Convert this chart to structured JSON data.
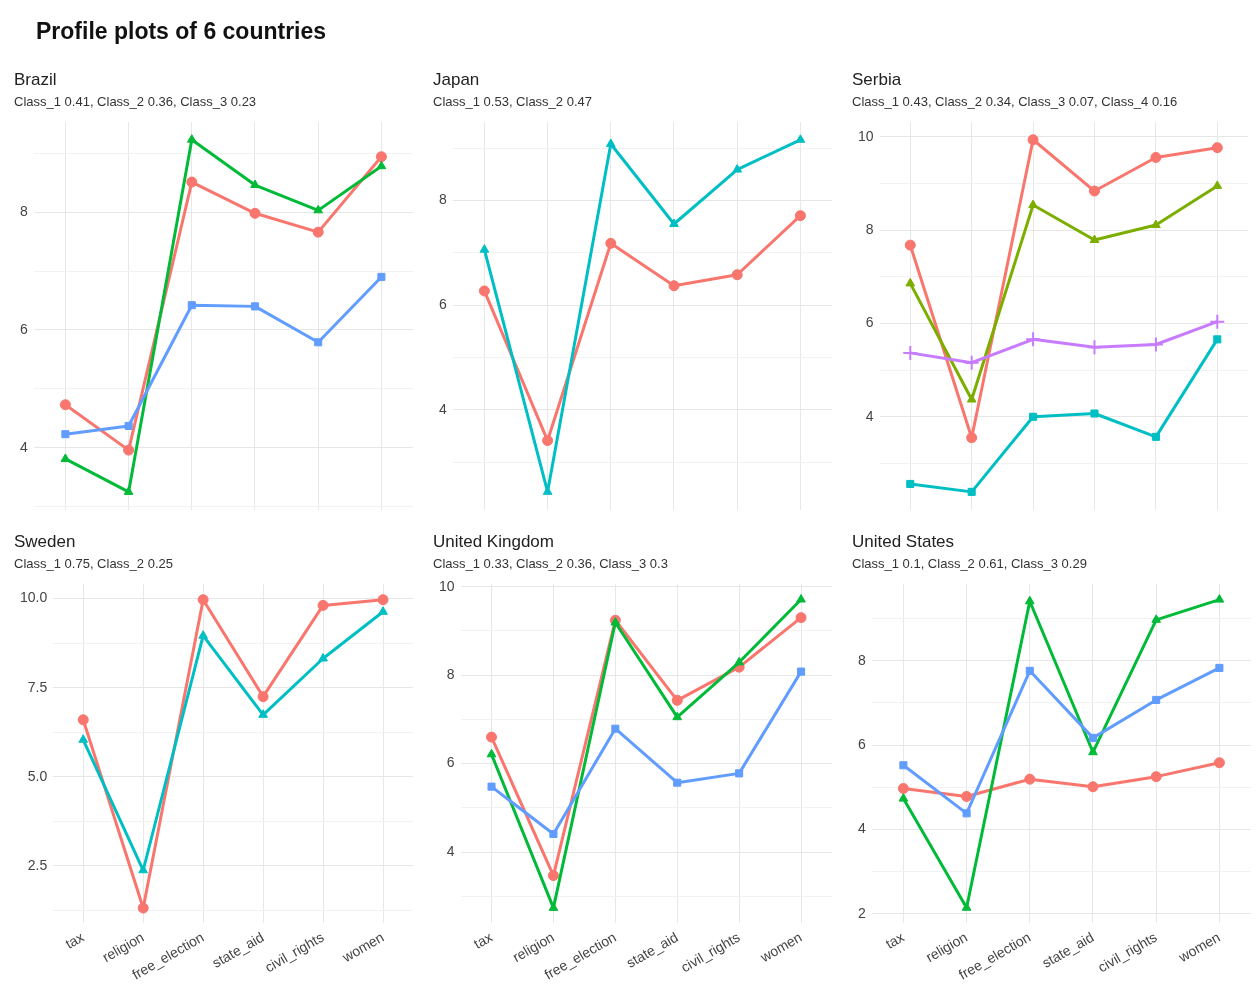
{
  "chart_data": [
    {
      "type": "line",
      "title": "Brazil",
      "subtitle": "Class_1 0.41, Class_2 0.36, Class_3 0.23",
      "annotations": [
        "Profile plots of 6 countries"
      ],
      "categories": [
        null,
        null,
        null,
        null,
        null,
        null
      ],
      "grid": true,
      "tick_labels": "y",
      "ylim": [
        2.95,
        9.53
      ],
      "yticks": [
        {
          "value": 3,
          "label": null
        },
        4,
        {
          "value": 5,
          "label": null
        },
        6,
        {
          "value": 7,
          "label": null
        },
        8,
        {
          "value": 9,
          "label": null
        }
      ],
      "series": [
        {
          "color": "#f8766d",
          "marker": "circle",
          "values": [
            4.73,
            3.96,
            8.51,
            7.98,
            7.66,
            8.94
          ]
        },
        {
          "color": "#00ba38",
          "marker": "triangle",
          "values": [
            3.81,
            3.25,
            9.23,
            8.46,
            8.03,
            8.78
          ]
        },
        {
          "color": "#619cff",
          "marker": "square",
          "values": [
            4.23,
            4.37,
            6.42,
            6.4,
            5.79,
            6.9
          ]
        }
      ]
    },
    {
      "type": "line",
      "title": "Japan",
      "subtitle": "Class_1 0.53, Class_2 0.47",
      "categories": [
        null,
        null,
        null,
        null,
        null,
        null
      ],
      "grid": true,
      "tick_labels": "y",
      "ylim": [
        2.09,
        9.5
      ],
      "yticks": [
        {
          "value": 3,
          "label": null
        },
        4,
        {
          "value": 5,
          "label": null
        },
        6,
        {
          "value": 7,
          "label": null
        },
        8,
        {
          "value": 9,
          "label": null
        }
      ],
      "series": [
        {
          "color": "#f8766d",
          "marker": "circle",
          "values": [
            6.27,
            3.41,
            7.18,
            6.37,
            6.58,
            7.71
          ]
        },
        {
          "color": "#00bfc4",
          "marker": "triangle",
          "values": [
            7.06,
            2.43,
            9.08,
            7.55,
            8.59,
            9.16
          ]
        }
      ]
    },
    {
      "type": "line",
      "title": "Serbia",
      "subtitle": "Class_1 0.43, Class_2 0.34, Class_3 0.07, Class_4 0.16",
      "categories": [
        null,
        null,
        null,
        null,
        null,
        null
      ],
      "grid": true,
      "tick_labels": "y",
      "ylim": [
        2.01,
        10.32
      ],
      "yticks": [
        {
          "value": 3,
          "label": null
        },
        4,
        {
          "value": 5,
          "label": null
        },
        6,
        {
          "value": 7,
          "label": null
        },
        8,
        {
          "value": 9,
          "label": null
        },
        10
      ],
      "series": [
        {
          "color": "#f8766d",
          "marker": "circle",
          "values": [
            7.68,
            3.55,
            9.94,
            8.84,
            9.56,
            9.77
          ]
        },
        {
          "color": "#7cae00",
          "marker": "triangle",
          "values": [
            6.86,
            4.37,
            8.54,
            7.79,
            8.11,
            8.95
          ]
        },
        {
          "color": "#00bfc4",
          "marker": "square",
          "values": [
            2.56,
            2.39,
            4.0,
            4.07,
            3.57,
            5.66
          ]
        },
        {
          "color": "#c77cff",
          "marker": "cross",
          "values": [
            5.37,
            5.16,
            5.66,
            5.49,
            5.55,
            6.04
          ]
        }
      ]
    },
    {
      "type": "line",
      "title": "Sweden",
      "subtitle": "Class_1 0.75, Class_2 0.25",
      "categories": [
        "tax",
        "religion",
        "free_election",
        "state_aid",
        "civil_rights",
        "women"
      ],
      "grid": true,
      "ylim": [
        0.89,
        10.41
      ],
      "yticks": [
        {
          "value": 1.25,
          "label": null
        },
        {
          "value": 2.5,
          "label": "2.5"
        },
        {
          "value": 3.75,
          "label": null
        },
        {
          "value": 5,
          "label": "5.0"
        },
        {
          "value": 6.25,
          "label": null
        },
        {
          "value": 7.5,
          "label": "7.5"
        },
        {
          "value": 8.75,
          "label": null
        },
        {
          "value": 10,
          "label": "10.0"
        }
      ],
      "series": [
        {
          "color": "#f8766d",
          "marker": "circle",
          "values": [
            6.6,
            1.32,
            9.97,
            7.25,
            9.81,
            9.97
          ]
        },
        {
          "color": "#00bfc4",
          "marker": "triangle",
          "values": [
            6.04,
            2.38,
            8.96,
            6.74,
            8.32,
            9.63
          ]
        }
      ]
    },
    {
      "type": "line",
      "title": "United Kingdom",
      "subtitle": "Class_1 0.33, Class_2 0.36, Class_3 0.3",
      "categories": [
        "tax",
        "religion",
        "free_election",
        "state_aid",
        "civil_rights",
        "women"
      ],
      "grid": true,
      "ylim": [
        2.39,
        10.06
      ],
      "yticks": [
        {
          "value": 3,
          "label": null
        },
        4,
        {
          "value": 5,
          "label": null
        },
        6,
        {
          "value": 7,
          "label": null
        },
        8,
        {
          "value": 9,
          "label": null
        },
        10
      ],
      "series": [
        {
          "color": "#f8766d",
          "marker": "circle",
          "values": [
            6.6,
            3.47,
            9.24,
            7.43,
            8.18,
            9.3
          ]
        },
        {
          "color": "#00ba38",
          "marker": "triangle",
          "values": [
            6.21,
            2.74,
            9.19,
            7.05,
            8.29,
            9.71
          ]
        },
        {
          "color": "#619cff",
          "marker": "square",
          "values": [
            5.48,
            4.41,
            6.79,
            5.57,
            5.78,
            8.08
          ]
        }
      ]
    },
    {
      "type": "line",
      "title": "United States",
      "subtitle": "Class_1 0.1, Class_2 0.61, Class_3 0.29",
      "categories": [
        "tax",
        "religion",
        "free_election",
        "state_aid",
        "civil_rights",
        "women"
      ],
      "grid": true,
      "ylim": [
        1.77,
        9.82
      ],
      "yticks": [
        2,
        {
          "value": 3,
          "label": null
        },
        4,
        {
          "value": 5,
          "label": null
        },
        6,
        {
          "value": 7,
          "label": null
        },
        8,
        {
          "value": 9,
          "label": null
        }
      ],
      "series": [
        {
          "color": "#f8766d",
          "marker": "circle",
          "values": [
            4.97,
            4.78,
            5.19,
            5.01,
            5.25,
            5.58
          ]
        },
        {
          "color": "#00ba38",
          "marker": "triangle",
          "values": [
            4.73,
            2.14,
            9.41,
            5.83,
            8.97,
            9.45
          ]
        },
        {
          "color": "#619cff",
          "marker": "square",
          "values": [
            5.52,
            4.38,
            7.76,
            6.17,
            7.07,
            7.83
          ]
        }
      ]
    }
  ]
}
